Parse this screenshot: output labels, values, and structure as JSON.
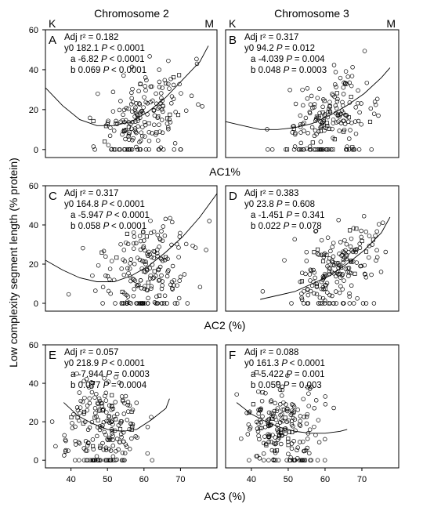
{
  "figure": {
    "ylabel": "Low complexity segment length (% protein)",
    "columns": [
      "Chromosome 2",
      "Chromosome 3"
    ],
    "row_xlabels": [
      "AC1%",
      "AC2 (%)",
      "AC3 (%)"
    ]
  },
  "chart_data": [
    {
      "type": "scatter",
      "panel": "A",
      "column": "Chromosome 2",
      "row": 1,
      "xlim": [
        0,
        100
      ],
      "ylim": [
        -4,
        60
      ],
      "yticks": [
        "0",
        "20",
        "40",
        "60"
      ],
      "xticks": [],
      "corner_labels": [
        "K",
        "M"
      ],
      "stats": {
        "adj_r2": "0.182",
        "y0": "182.1",
        "y0_p": "< 0.0001",
        "a": "-6.82",
        "a_p": "< 0.0001",
        "b": "0.069",
        "b_p": "< 0.0001"
      },
      "fit_curve": {
        "type": "quadratic",
        "points": [
          [
            0,
            31
          ],
          [
            10,
            22
          ],
          [
            20,
            15
          ],
          [
            30,
            12
          ],
          [
            40,
            12
          ],
          [
            50,
            14
          ],
          [
            60,
            19
          ],
          [
            70,
            26
          ],
          [
            80,
            35
          ],
          [
            90,
            44
          ],
          [
            95,
            52
          ]
        ]
      },
      "cloud": {
        "cx": 58,
        "sx": 13,
        "cy": 16,
        "sy": 11,
        "n": 190,
        "trend": 0.25
      },
      "seed": 11
    },
    {
      "type": "scatter",
      "panel": "B",
      "column": "Chromosome 3",
      "row": 1,
      "xlim": [
        0,
        100
      ],
      "ylim": [
        -4,
        60
      ],
      "yticks": [],
      "xticks": [],
      "corner_labels": [
        "K",
        "M"
      ],
      "stats": {
        "adj_r2": "0.317",
        "y0": "94.2",
        "y0_p": "= 0.012",
        "a": "-4.039",
        "a_p": "= 0.004",
        "b": "0.048",
        "b_p": "= 0.0003"
      },
      "fit_curve": {
        "type": "quadratic",
        "points": [
          [
            0,
            14
          ],
          [
            10,
            12
          ],
          [
            20,
            10
          ],
          [
            30,
            10
          ],
          [
            40,
            11
          ],
          [
            50,
            13
          ],
          [
            60,
            17
          ],
          [
            70,
            22
          ],
          [
            80,
            28
          ],
          [
            90,
            36
          ],
          [
            95,
            41
          ]
        ]
      },
      "cloud": {
        "cx": 58,
        "sx": 12,
        "cy": 16,
        "sy": 10,
        "n": 190,
        "trend": 0.35
      },
      "seed": 22
    },
    {
      "type": "scatter",
      "panel": "C",
      "column": "Chromosome 2",
      "row": 2,
      "xlim": [
        0,
        100
      ],
      "ylim": [
        -4,
        60
      ],
      "yticks": [
        "0",
        "20",
        "40",
        "60"
      ],
      "xticks": [],
      "stats": {
        "adj_r2": "0.317",
        "y0": "164.8",
        "y0_p": "< 0.0001",
        "a": "-5.947",
        "a_p": "< 0.0001",
        "b": "0.058",
        "b_p": "< 0.0001"
      },
      "fit_curve": {
        "type": "quadratic",
        "points": [
          [
            0,
            22
          ],
          [
            10,
            17
          ],
          [
            20,
            13
          ],
          [
            30,
            11
          ],
          [
            40,
            11
          ],
          [
            50,
            14
          ],
          [
            60,
            19
          ],
          [
            70,
            26
          ],
          [
            80,
            34
          ],
          [
            90,
            44
          ],
          [
            100,
            56
          ]
        ]
      },
      "cloud": {
        "cx": 60,
        "sx": 13,
        "cy": 18,
        "sy": 11,
        "n": 200,
        "trend": 0.3
      },
      "seed": 33
    },
    {
      "type": "scatter",
      "panel": "D",
      "column": "Chromosome 3",
      "row": 2,
      "xlim": [
        0,
        100
      ],
      "ylim": [
        -4,
        60
      ],
      "yticks": [],
      "xticks": [],
      "stats": {
        "adj_r2": "0.383",
        "y0": "23.8",
        "y0_p": "= 0.608",
        "a": "-1.451",
        "a_p": "= 0.341",
        "b": "0.022",
        "b_p": "= 0.078"
      },
      "fit_curve": {
        "type": "quadratic",
        "points": [
          [
            20,
            2
          ],
          [
            30,
            4
          ],
          [
            40,
            6
          ],
          [
            50,
            10
          ],
          [
            60,
            14
          ],
          [
            70,
            20
          ],
          [
            80,
            27
          ],
          [
            90,
            36
          ],
          [
            95,
            44
          ]
        ]
      },
      "cloud": {
        "cx": 64,
        "sx": 13,
        "cy": 18,
        "sy": 10,
        "n": 200,
        "trend": 0.4
      },
      "seed": 44
    },
    {
      "type": "scatter",
      "panel": "E",
      "column": "Chromosome 2",
      "row": 3,
      "xlim": [
        33,
        80
      ],
      "ylim": [
        -4,
        60
      ],
      "yticks": [
        "0",
        "20",
        "40",
        "60"
      ],
      "xticks": [
        "40",
        "50",
        "60",
        "70"
      ],
      "stats": {
        "adj_r2": "0.057",
        "y0": "218.9",
        "y0_p": "< 0.0001",
        "a": "-7.944",
        "a_p": "= 0.0003",
        "b": "0.077",
        "b_p": "= 0.0004"
      },
      "fit_curve": {
        "type": "quadratic",
        "points": [
          [
            38,
            30
          ],
          [
            42,
            23
          ],
          [
            46,
            19
          ],
          [
            50,
            16
          ],
          [
            54,
            15
          ],
          [
            58,
            16
          ],
          [
            62,
            21
          ],
          [
            66,
            27
          ],
          [
            67,
            32
          ]
        ]
      },
      "cloud": {
        "cx": 49,
        "sx": 5,
        "cy": 18,
        "sy": 11,
        "n": 210,
        "trend": 0
      },
      "seed": 55
    },
    {
      "type": "scatter",
      "panel": "F",
      "column": "Chromosome 3",
      "row": 3,
      "xlim": [
        33,
        80
      ],
      "ylim": [
        -4,
        60
      ],
      "yticks": [],
      "xticks": [
        "40",
        "50",
        "60",
        "70"
      ],
      "stats": {
        "adj_r2": "0.088",
        "y0": "161.3",
        "y0_p": "< 0.0001",
        "a": "-5.422",
        "a_p": "= 0.001",
        "b": "0.050",
        "b_p": "= 0.003"
      },
      "fit_curve": {
        "type": "quadratic",
        "points": [
          [
            36,
            30
          ],
          [
            40,
            24
          ],
          [
            44,
            20
          ],
          [
            48,
            17
          ],
          [
            52,
            15
          ],
          [
            56,
            14
          ],
          [
            60,
            14
          ],
          [
            64,
            15
          ],
          [
            66,
            16
          ]
        ]
      },
      "cloud": {
        "cx": 48,
        "sx": 5,
        "cy": 17,
        "sy": 10,
        "n": 210,
        "trend": 0
      },
      "seed": 66
    }
  ]
}
